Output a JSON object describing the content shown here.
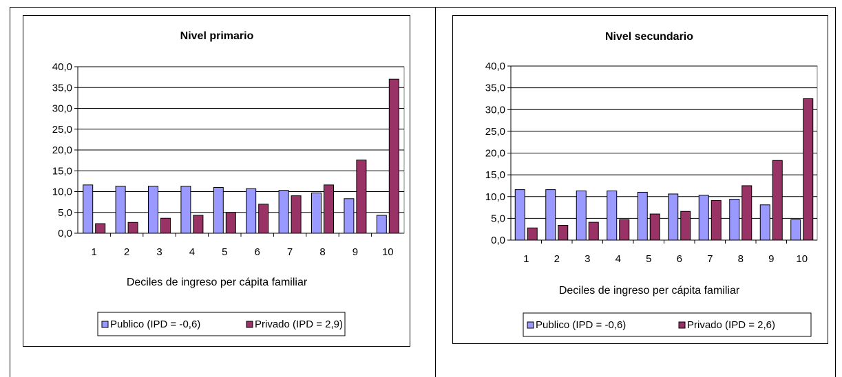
{
  "colors": {
    "publico": "#9999ff",
    "privado": "#993366",
    "grid": "#000000"
  },
  "chart_data": [
    {
      "type": "bar",
      "title": "Nivel primario",
      "xlabel": "Deciles de ingreso per cápita familiar",
      "ylabel": "",
      "ylim": [
        0,
        40
      ],
      "yticks": [
        "0,0",
        "5,0",
        "10,0",
        "15,0",
        "20,0",
        "25,0",
        "30,0",
        "35,0",
        "40,0"
      ],
      "categories": [
        "1",
        "2",
        "3",
        "4",
        "5",
        "6",
        "7",
        "8",
        "9",
        "10"
      ],
      "grid": true,
      "legend": "bottom",
      "series": [
        {
          "name": "Publico (IPD = -0,6)",
          "values": [
            11.6,
            11.3,
            11.3,
            11.3,
            11.0,
            10.7,
            10.3,
            9.7,
            8.3,
            4.3
          ]
        },
        {
          "name": "Privado (IPD = 2,9)",
          "values": [
            2.3,
            2.6,
            3.6,
            4.3,
            5.0,
            7.0,
            9.0,
            11.6,
            17.6,
            37.0
          ]
        }
      ]
    },
    {
      "type": "bar",
      "title": "Nivel secundario",
      "xlabel": "Deciles de ingreso per cápita familiar",
      "ylabel": "",
      "ylim": [
        0,
        40
      ],
      "yticks": [
        "0,0",
        "5,0",
        "10,0",
        "15,0",
        "20,0",
        "25,0",
        "30,0",
        "35,0",
        "40,0"
      ],
      "categories": [
        "1",
        "2",
        "3",
        "4",
        "5",
        "6",
        "7",
        "8",
        "9",
        "10"
      ],
      "grid": true,
      "legend": "bottom",
      "series": [
        {
          "name": "Publico (IPD = -0,6)",
          "values": [
            11.6,
            11.6,
            11.3,
            11.3,
            11.0,
            10.6,
            10.3,
            9.4,
            8.1,
            4.7
          ]
        },
        {
          "name": "Privado (IPD = 2,6)",
          "values": [
            2.8,
            3.4,
            4.1,
            4.7,
            6.0,
            6.6,
            9.1,
            12.5,
            18.3,
            32.5
          ]
        }
      ]
    }
  ]
}
